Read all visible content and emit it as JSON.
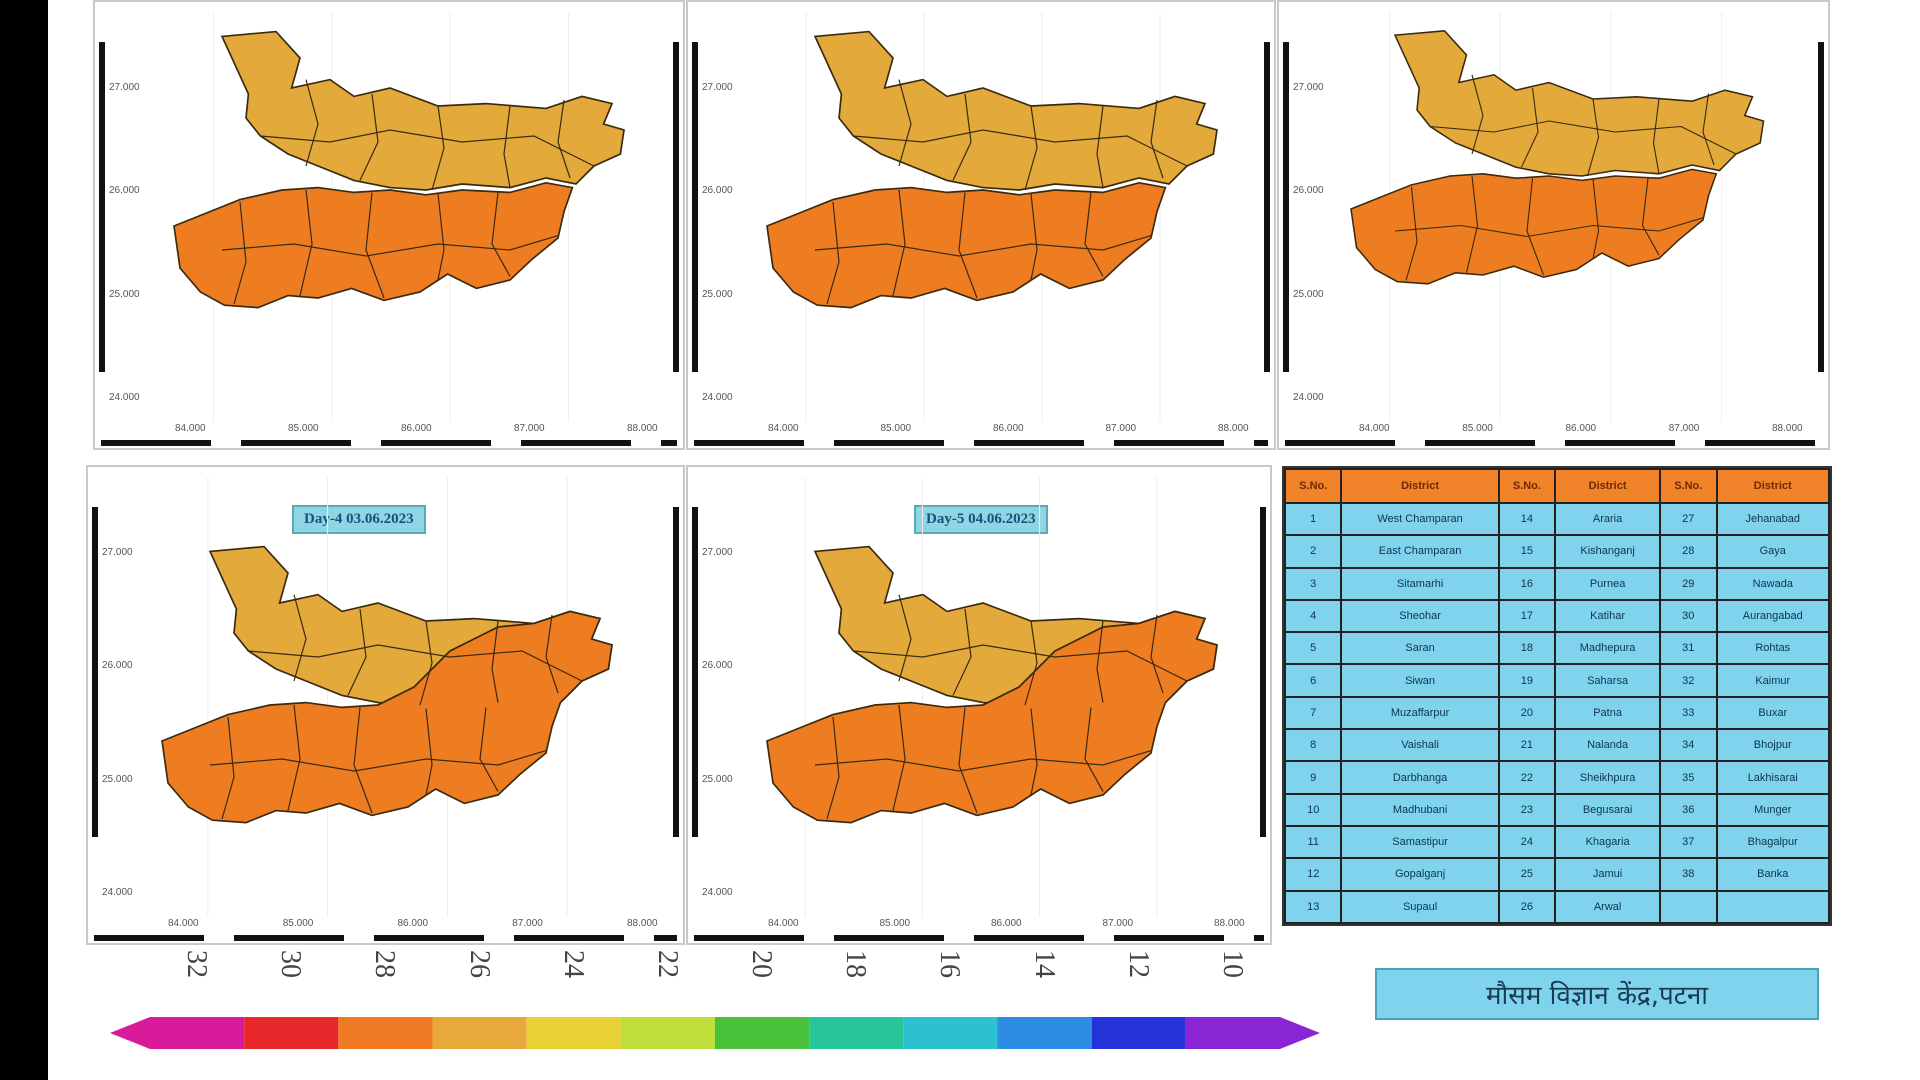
{
  "panels": [
    {
      "id": "day1",
      "label": "",
      "x_ticks": [
        "84.000",
        "85.000",
        "86.000",
        "87.000",
        "88.000"
      ],
      "y_ticks": [
        "27.000",
        "26.000",
        "25.000",
        "24.000"
      ],
      "north_fill": "#e3a93a",
      "south_fill": "#ee7d22"
    },
    {
      "id": "day2",
      "label": "",
      "x_ticks": [
        "84.000",
        "85.000",
        "86.000",
        "87.000",
        "88.000"
      ],
      "y_ticks": [
        "27.000",
        "26.000",
        "25.000",
        "24.000"
      ],
      "north_fill": "#e3a93a",
      "south_fill": "#ee7d22"
    },
    {
      "id": "day3",
      "label": "",
      "x_ticks": [
        "84.000",
        "85.000",
        "86.000",
        "87.000",
        "88.000"
      ],
      "y_ticks": [
        "27.000",
        "26.000",
        "25.000",
        "24.000"
      ],
      "north_fill": "#e3a93a",
      "south_fill": "#ee7d22"
    },
    {
      "id": "day4",
      "label": "Day-4 03.06.2023",
      "x_ticks": [
        "84.000",
        "85.000",
        "86.000",
        "87.000",
        "88.000"
      ],
      "y_ticks": [
        "27.000",
        "26.000",
        "25.000",
        "24.000"
      ],
      "north_fill": "#e3a93a",
      "south_fill": "#ee7d22"
    },
    {
      "id": "day5",
      "label": "Day-5 04.06.2023",
      "x_ticks": [
        "84.000",
        "85.000",
        "86.000",
        "87.000",
        "88.000"
      ],
      "y_ticks": [
        "27.000",
        "26.000",
        "25.000",
        "24.000"
      ],
      "north_fill": "#e3a93a",
      "south_fill": "#ee7d22"
    }
  ],
  "legend": {
    "labels": [
      "32",
      "30",
      "28",
      "26",
      "24",
      "22",
      "20",
      "18",
      "16",
      "14",
      "12",
      "10"
    ],
    "colors": [
      "#d81b9a",
      "#e8282a",
      "#f07a24",
      "#e7a93a",
      "#e8d135",
      "#bfe03a",
      "#49c23a",
      "#27c59a",
      "#2cc1cf",
      "#2e8de3",
      "#2434d9",
      "#8a25d6"
    ]
  },
  "table": {
    "headers": [
      "S.No.",
      "District",
      "S.No.",
      "District",
      "S.No.",
      "District"
    ],
    "rows": [
      [
        "1",
        "West Champaran",
        "14",
        "Araria",
        "27",
        "Jehanabad"
      ],
      [
        "2",
        "East Champaran",
        "15",
        "Kishanganj",
        "28",
        "Gaya"
      ],
      [
        "3",
        "Sitamarhi",
        "16",
        "Purnea",
        "29",
        "Nawada"
      ],
      [
        "4",
        "Sheohar",
        "17",
        "Katihar",
        "30",
        "Aurangabad"
      ],
      [
        "5",
        "Saran",
        "18",
        "Madhepura",
        "31",
        "Rohtas"
      ],
      [
        "6",
        "Siwan",
        "19",
        "Saharsa",
        "32",
        "Kaimur"
      ],
      [
        "7",
        "Muzaffarpur",
        "20",
        "Patna",
        "33",
        "Buxar"
      ],
      [
        "8",
        "Vaishali",
        "21",
        "Nalanda",
        "34",
        "Bhojpur"
      ],
      [
        "9",
        "Darbhanga",
        "22",
        "Sheikhpura",
        "35",
        "Lakhisarai"
      ],
      [
        "10",
        "Madhubani",
        "23",
        "Begusarai",
        "36",
        "Munger"
      ],
      [
        "11",
        "Samastipur",
        "24",
        "Khagaria",
        "37",
        "Bhagalpur"
      ],
      [
        "12",
        "Gopalganj",
        "25",
        "Jamui",
        "38",
        "Banka"
      ],
      [
        "13",
        "Supaul",
        "26",
        "Arwal",
        "",
        ""
      ]
    ]
  },
  "office": "मौसम विज्ञान केंद्र,पटना"
}
